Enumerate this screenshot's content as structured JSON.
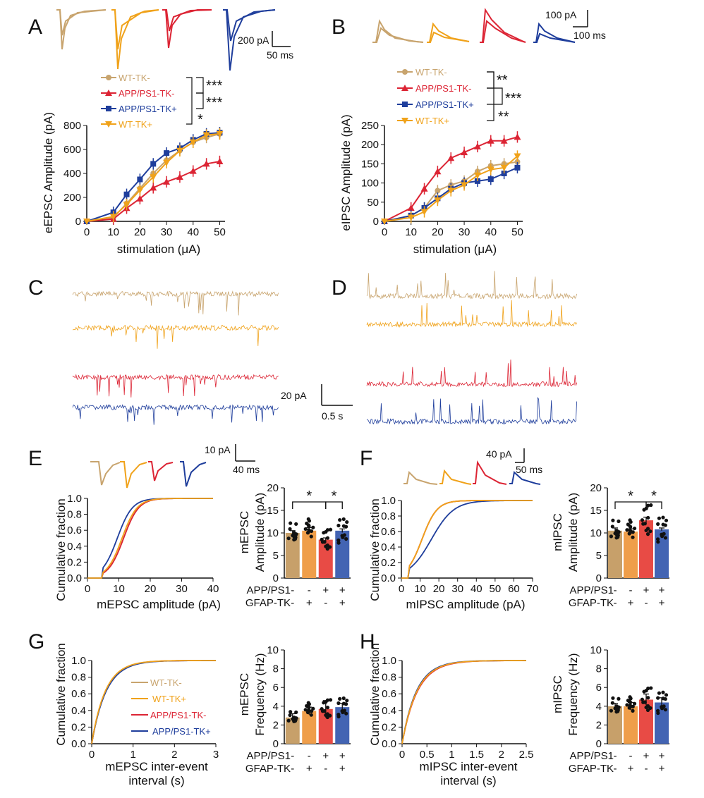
{
  "colors": {
    "wt_tk_minus": "#c8a46e",
    "wt_tk_plus": "#f0a21a",
    "app_tk_minus": "#dc2434",
    "app_tk_plus": "#1f3e9c"
  },
  "panels": {
    "A": "A",
    "B": "B",
    "C": "C",
    "D": "D",
    "E": "E",
    "F": "F",
    "G": "G",
    "H": "H"
  },
  "legend": {
    "wt_minus": "WT-TK-",
    "app_minus": "APP/PS1-TK-",
    "app_plus": "APP/PS1-TK+",
    "wt_plus": "WT-TK+"
  },
  "scalebars": {
    "A_y": "200 pA",
    "A_x": "50 ms",
    "B_y": "100 pA",
    "B_x": "100 ms",
    "CD_y": "20 pA",
    "CD_x": "0.5 s",
    "E_y": "10 pA",
    "E_x": "40 ms",
    "F_y": "40 pA",
    "F_x": "50 ms"
  },
  "significance": {
    "A": [
      "***",
      "***",
      "*"
    ],
    "B": [
      "**",
      "***",
      "**"
    ],
    "E": [
      "*",
      "*"
    ],
    "F": [
      "*",
      "*"
    ]
  },
  "genotype_rows": {
    "row1": "APP/PS1",
    "row2": "GFAP-TK",
    "signs1": [
      "-",
      "-",
      "+",
      "+"
    ],
    "signs2": [
      "-",
      "+",
      "-",
      "+"
    ]
  },
  "chart_data": [
    {
      "panel": "A",
      "type": "line",
      "ylabel": "eEPSC Amplitude (pA)",
      "xlabel": "stimulation (μA)",
      "x": [
        0,
        10,
        15,
        20,
        25,
        30,
        35,
        40,
        45,
        50
      ],
      "xticks": [
        0,
        10,
        20,
        30,
        40,
        50
      ],
      "yticks": [
        0,
        200,
        400,
        600,
        800
      ],
      "ylim": [
        0,
        800
      ],
      "series": [
        {
          "name": "WT-TK-",
          "values": [
            0,
            30,
            150,
            275,
            400,
            510,
            590,
            660,
            700,
            730
          ]
        },
        {
          "name": "APP/PS1-TK-",
          "values": [
            0,
            20,
            110,
            190,
            280,
            330,
            370,
            420,
            480,
            500
          ]
        },
        {
          "name": "APP/PS1-TK+",
          "values": [
            0,
            75,
            225,
            350,
            480,
            570,
            610,
            680,
            730,
            740
          ]
        },
        {
          "name": "WT-TK+",
          "values": [
            0,
            40,
            140,
            260,
            370,
            490,
            590,
            660,
            720,
            730
          ]
        }
      ]
    },
    {
      "panel": "B",
      "type": "line",
      "ylabel": "eIPSC Amplitude (pA)",
      "xlabel": "stimulation (μA)",
      "x": [
        0,
        10,
        15,
        20,
        25,
        30,
        35,
        40,
        45,
        50
      ],
      "xticks": [
        0,
        10,
        20,
        30,
        40,
        50
      ],
      "yticks": [
        0,
        50,
        100,
        150,
        200,
        250
      ],
      "ylim": [
        0,
        250
      ],
      "series": [
        {
          "name": "WT-TK-",
          "values": [
            0,
            15,
            35,
            80,
            95,
            105,
            130,
            145,
            150,
            155
          ]
        },
        {
          "name": "APP/PS1-TK-",
          "values": [
            0,
            35,
            85,
            130,
            165,
            180,
            195,
            210,
            210,
            220
          ]
        },
        {
          "name": "APP/PS1-TK+",
          "values": [
            0,
            15,
            35,
            60,
            85,
            100,
            105,
            110,
            125,
            140
          ]
        },
        {
          "name": "WT-TK+",
          "values": [
            0,
            10,
            25,
            55,
            80,
            95,
            120,
            135,
            140,
            170
          ]
        }
      ]
    },
    {
      "panel": "E",
      "type": "line",
      "ylabel": "Cumulative fraction",
      "xlabel": "mEPSC amplitude (pA)",
      "xticks": [
        0,
        10,
        20,
        30,
        40
      ],
      "yticks": [
        0.0,
        0.2,
        0.4,
        0.6,
        0.8,
        1.0
      ]
    },
    {
      "panel": "E",
      "type": "bar",
      "ylabel": "mEPSC Amplitude (pA)",
      "yticks": [
        0,
        5,
        10,
        15,
        20
      ],
      "values": [
        10,
        10.5,
        8.5,
        10.5
      ],
      "errors": [
        0.5,
        0.7,
        0.4,
        0.4
      ]
    },
    {
      "panel": "F",
      "type": "line",
      "ylabel": "Cumulative fraction",
      "xlabel": "mIPSC amplitude (pA)",
      "xticks": [
        0,
        10,
        20,
        30,
        40,
        50,
        60,
        70
      ],
      "yticks": [
        0.0,
        0.2,
        0.4,
        0.6,
        0.8,
        1.0
      ]
    },
    {
      "panel": "F",
      "type": "bar",
      "ylabel": "mIPSC Amplitude (pA)",
      "yticks": [
        0,
        5,
        10,
        15,
        20
      ],
      "values": [
        10.5,
        10.3,
        12.8,
        10.8
      ],
      "errors": [
        0.6,
        0.6,
        0.7,
        0.3
      ]
    },
    {
      "panel": "G",
      "type": "line",
      "ylabel": "Cumulative fraction",
      "xlabel": "mEPSC inter-event interval (s)",
      "xticks": [
        0,
        1,
        2,
        3
      ],
      "yticks": [
        0.0,
        0.2,
        0.4,
        0.6,
        0.8,
        1.0
      ]
    },
    {
      "panel": "G",
      "type": "bar",
      "ylabel": "mEPSC Frequency (Hz)",
      "yticks": [
        0,
        2,
        4,
        6,
        8,
        10
      ],
      "values": [
        2.8,
        3.5,
        3.7,
        3.9
      ],
      "errors": [
        0.4,
        0.4,
        0.9,
        0.4
      ]
    },
    {
      "panel": "H",
      "type": "line",
      "ylabel": "Cumulative fraction",
      "xlabel": "mIPSC inter-event interval (s)",
      "xticks": [
        0.0,
        0.5,
        1.0,
        1.5,
        2.0,
        2.5
      ],
      "yticks": [
        0.0,
        0.2,
        0.4,
        0.6,
        0.8,
        1.0
      ]
    },
    {
      "panel": "H",
      "type": "bar",
      "ylabel": "mIPSC Frequency (Hz)",
      "yticks": [
        0,
        2,
        4,
        6,
        8,
        10
      ],
      "values": [
        4.0,
        4.0,
        4.7,
        4.4
      ],
      "errors": [
        0.3,
        0.4,
        0.6,
        0.5
      ]
    }
  ],
  "text": {
    "A_ylabel": "eEPSC Amplitude (pA)",
    "B_ylabel": "eIPSC Amplitude (pA)",
    "stim": "stimulation (μA)",
    "cum": "Cumulative fraction",
    "E_x": "mEPSC amplitude (pA)",
    "F_x": "mIPSC amplitude (pA)",
    "G_x1": "mEPSC inter-event",
    "G_x2": "interval (s)",
    "H_x1": "mIPSC inter-event",
    "H_x2": "interval (s)",
    "E_bar1": "mEPSC",
    "E_bar2": "Amplitude (pA)",
    "F_bar1": "mIPSC",
    "F_bar2": "Amplitude (pA)",
    "G_bar1": "mEPSC",
    "G_bar2": "Frequency (Hz)",
    "H_bar1": "mIPSC",
    "H_bar2": "Frequency (Hz)"
  }
}
